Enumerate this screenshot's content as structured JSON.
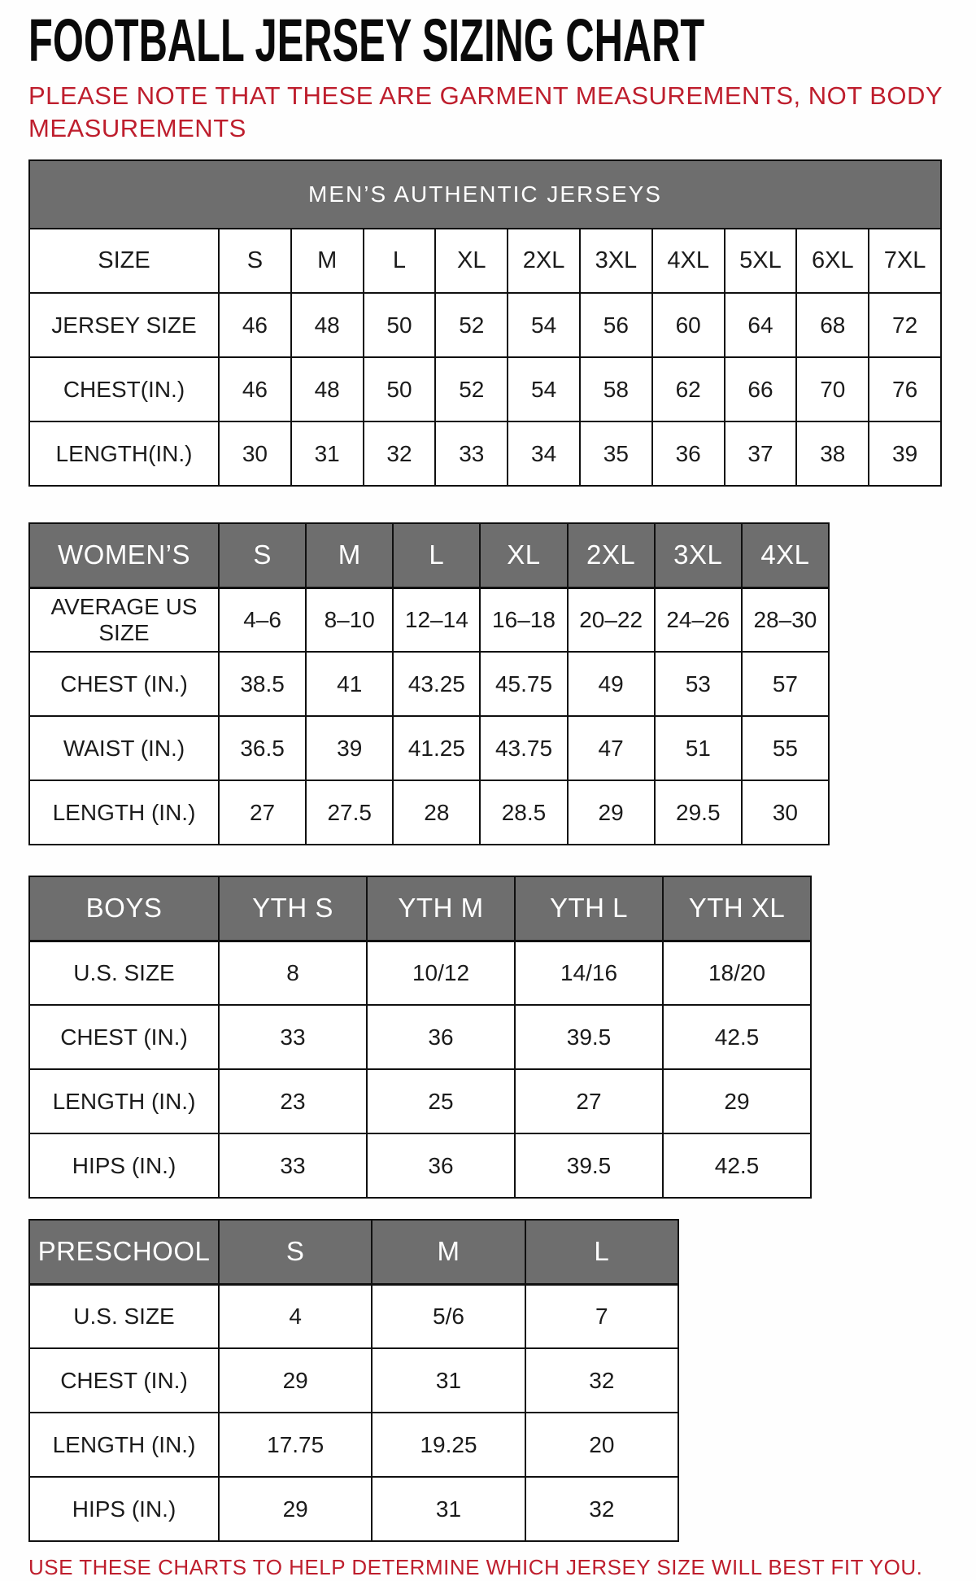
{
  "page": {
    "title": "FOOTBALL JERSEY SIZING CHART",
    "note_top": "PLEASE NOTE THAT THESE ARE GARMENT MEASUREMENTS, NOT BODY MEASUREMENTS",
    "note_bottom": "USE THESE CHARTS TO HELP DETERMINE WHICH JERSEY SIZE WILL BEST FIT YOU."
  },
  "colors": {
    "note_red": "#be1e2d",
    "header_gray": "#6e6e6e",
    "border_black": "#101010"
  },
  "tables": [
    {
      "name": "mens",
      "banner": "MEN’S AUTHENTIC JERSEYS",
      "header_style": "plain",
      "header_row": {
        "label": "SIZE",
        "cells": [
          "S",
          "M",
          "L",
          "XL",
          "2XL",
          "3XL",
          "4XL",
          "5XL",
          "6XL",
          "7XL"
        ]
      },
      "rows": [
        {
          "label": "JERSEY SIZE",
          "cells": [
            "46",
            "48",
            "50",
            "52",
            "54",
            "56",
            "60",
            "64",
            "68",
            "72"
          ]
        },
        {
          "label": "CHEST(IN.)",
          "cells": [
            "46",
            "48",
            "50",
            "52",
            "54",
            "58",
            "62",
            "66",
            "70",
            "76"
          ]
        },
        {
          "label": "LENGTH(IN.)",
          "cells": [
            "30",
            "31",
            "32",
            "33",
            "34",
            "35",
            "36",
            "37",
            "38",
            "39"
          ]
        }
      ]
    },
    {
      "name": "womens",
      "banner": null,
      "header_style": "gray",
      "header_row": {
        "label": "WOMEN’S",
        "cells": [
          "S",
          "M",
          "L",
          "XL",
          "2XL",
          "3XL",
          "4XL"
        ]
      },
      "rows": [
        {
          "label": "AVERAGE US SIZE",
          "cells": [
            "4–6",
            "8–10",
            "12–14",
            "16–18",
            "20–22",
            "24–26",
            "28–30"
          ]
        },
        {
          "label": "CHEST (IN.)",
          "cells": [
            "38.5",
            "41",
            "43.25",
            "45.75",
            "49",
            "53",
            "57"
          ]
        },
        {
          "label": "WAIST (IN.)",
          "cells": [
            "36.5",
            "39",
            "41.25",
            "43.75",
            "47",
            "51",
            "55"
          ]
        },
        {
          "label": "LENGTH (IN.)",
          "cells": [
            "27",
            "27.5",
            "28",
            "28.5",
            "29",
            "29.5",
            "30"
          ]
        }
      ]
    },
    {
      "name": "boys",
      "banner": null,
      "header_style": "gray",
      "header_row": {
        "label": "BOYS",
        "cells": [
          "YTH S",
          "YTH M",
          "YTH L",
          "YTH XL"
        ]
      },
      "rows": [
        {
          "label": "U.S. SIZE",
          "cells": [
            "8",
            "10/12",
            "14/16",
            "18/20"
          ]
        },
        {
          "label": "CHEST (IN.)",
          "cells": [
            "33",
            "36",
            "39.5",
            "42.5"
          ]
        },
        {
          "label": "LENGTH (IN.)",
          "cells": [
            "23",
            "25",
            "27",
            "29"
          ]
        },
        {
          "label": "HIPS (IN.)",
          "cells": [
            "33",
            "36",
            "39.5",
            "42.5"
          ]
        }
      ]
    },
    {
      "name": "preschool",
      "banner": null,
      "header_style": "gray",
      "header_row": {
        "label": "PRESCHOOL",
        "cells": [
          "S",
          "M",
          "L"
        ]
      },
      "rows": [
        {
          "label": "U.S. SIZE",
          "cells": [
            "4",
            "5/6",
            "7"
          ]
        },
        {
          "label": "CHEST (IN.)",
          "cells": [
            "29",
            "31",
            "32"
          ]
        },
        {
          "label": "LENGTH (IN.)",
          "cells": [
            "17.75",
            "19.25",
            "20"
          ]
        },
        {
          "label": "HIPS (IN.)",
          "cells": [
            "29",
            "31",
            "32"
          ]
        }
      ]
    }
  ]
}
